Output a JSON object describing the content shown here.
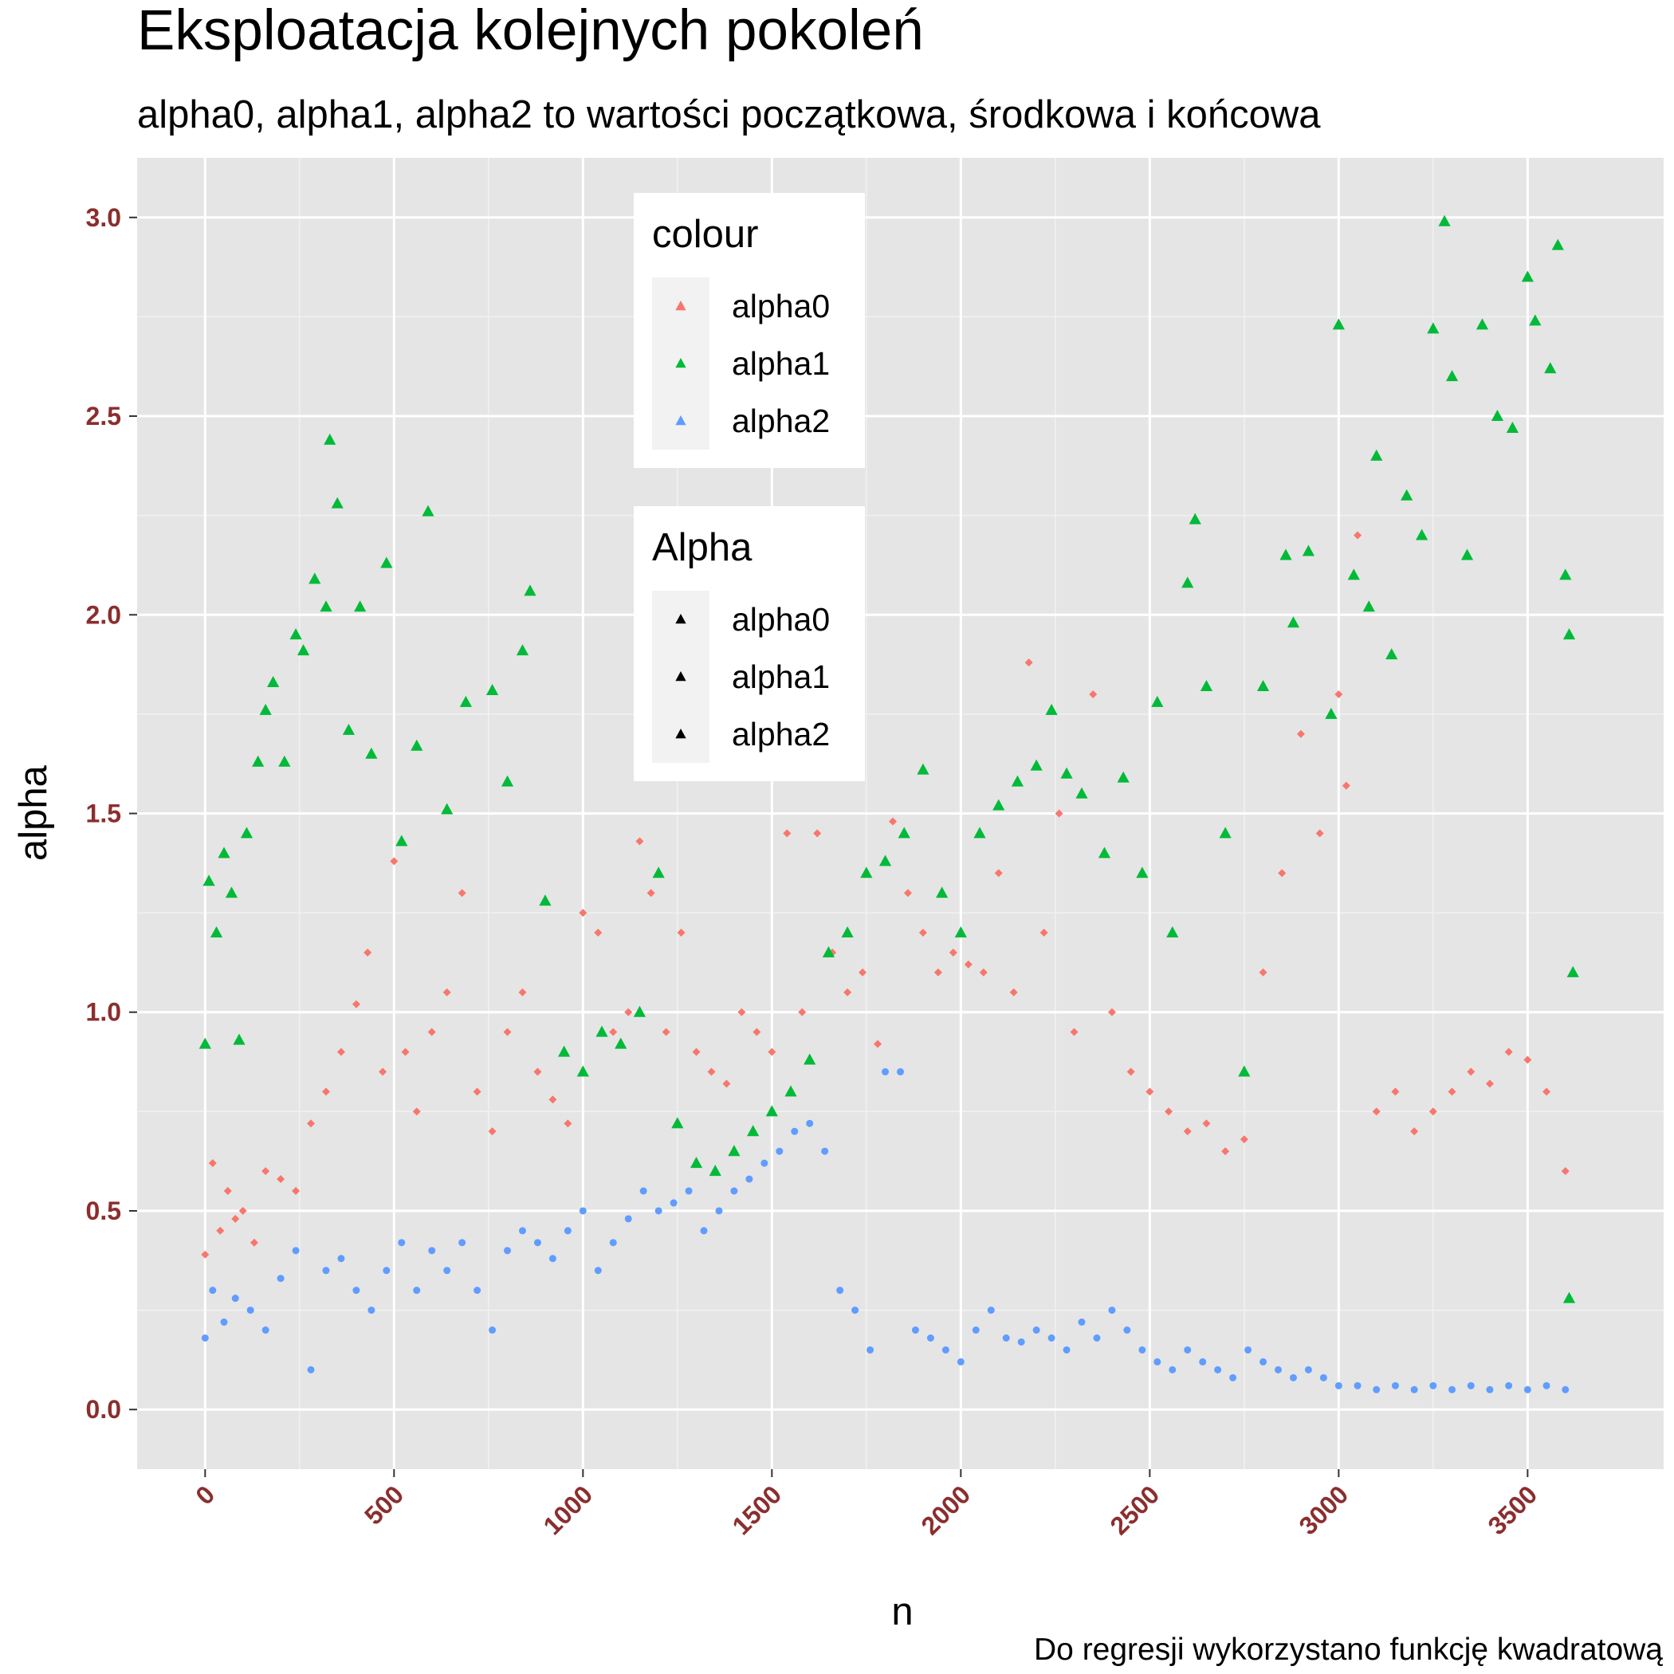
{
  "chart_data": {
    "type": "scatter",
    "title": "Eksploatacja kolejnych pokoleń",
    "subtitle": "alpha0, alpha1, alpha2 to wartości początkowa, środkowa i końcowa",
    "caption": "Do regresji wykorzystano funkcję kwadratową",
    "xlabel": "n",
    "ylabel": "alpha",
    "xlim": [
      -180,
      3860
    ],
    "ylim": [
      -0.15,
      3.15
    ],
    "x_ticks": [
      0,
      500,
      1000,
      1500,
      2000,
      2500,
      3000,
      3500
    ],
    "x_tick_labels": [
      "0",
      "500",
      "1000",
      "1500",
      "2000",
      "2500",
      "3000",
      "3500"
    ],
    "y_ticks": [
      0.0,
      0.5,
      1.0,
      1.5,
      2.0,
      2.5,
      3.0
    ],
    "y_tick_labels": [
      "0.0",
      "0.5",
      "1.0",
      "1.5",
      "2.0",
      "2.5",
      "3.0"
    ],
    "grid": true,
    "background": "#e5e5e5",
    "legends": [
      {
        "title": "colour",
        "placement": "top-center",
        "entries": [
          {
            "label": "alpha0",
            "color": "#F8766D",
            "shape": "triangle"
          },
          {
            "label": "alpha1",
            "color": "#00BA38",
            "shape": "triangle"
          },
          {
            "label": "alpha2",
            "color": "#619CFF",
            "shape": "triangle"
          }
        ]
      },
      {
        "title": "Alpha",
        "placement": "top-center",
        "entries": [
          {
            "label": "alpha0",
            "color": "#000000",
            "shape": "triangle"
          },
          {
            "label": "alpha1",
            "color": "#000000",
            "shape": "triangle"
          },
          {
            "label": "alpha2",
            "color": "#000000",
            "shape": "triangle"
          }
        ]
      }
    ],
    "series": [
      {
        "name": "alpha0",
        "color": "#F8766D",
        "shape": "diamond",
        "points": [
          [
            0,
            0.39
          ],
          [
            20,
            0.62
          ],
          [
            40,
            0.45
          ],
          [
            60,
            0.55
          ],
          [
            80,
            0.48
          ],
          [
            100,
            0.5
          ],
          [
            130,
            0.42
          ],
          [
            160,
            0.6
          ],
          [
            200,
            0.58
          ],
          [
            240,
            0.55
          ],
          [
            280,
            0.72
          ],
          [
            320,
            0.8
          ],
          [
            360,
            0.9
          ],
          [
            400,
            1.02
          ],
          [
            430,
            1.15
          ],
          [
            470,
            0.85
          ],
          [
            500,
            1.38
          ],
          [
            530,
            0.9
          ],
          [
            560,
            0.75
          ],
          [
            600,
            0.95
          ],
          [
            640,
            1.05
          ],
          [
            680,
            1.3
          ],
          [
            720,
            0.8
          ],
          [
            760,
            0.7
          ],
          [
            800,
            0.95
          ],
          [
            840,
            1.05
          ],
          [
            880,
            0.85
          ],
          [
            920,
            0.78
          ],
          [
            960,
            0.72
          ],
          [
            1000,
            1.25
          ],
          [
            1040,
            1.2
          ],
          [
            1080,
            0.95
          ],
          [
            1120,
            1.0
          ],
          [
            1150,
            1.43
          ],
          [
            1180,
            1.3
          ],
          [
            1220,
            0.95
          ],
          [
            1260,
            1.2
          ],
          [
            1300,
            0.9
          ],
          [
            1340,
            0.85
          ],
          [
            1380,
            0.82
          ],
          [
            1420,
            1.0
          ],
          [
            1460,
            0.95
          ],
          [
            1500,
            0.9
          ],
          [
            1540,
            1.45
          ],
          [
            1580,
            1.0
          ],
          [
            1620,
            1.45
          ],
          [
            1660,
            1.15
          ],
          [
            1700,
            1.05
          ],
          [
            1740,
            1.1
          ],
          [
            1780,
            0.92
          ],
          [
            1820,
            1.48
          ],
          [
            1860,
            1.3
          ],
          [
            1900,
            1.2
          ],
          [
            1940,
            1.1
          ],
          [
            1980,
            1.15
          ],
          [
            2020,
            1.12
          ],
          [
            2060,
            1.1
          ],
          [
            2100,
            1.35
          ],
          [
            2140,
            1.05
          ],
          [
            2180,
            1.88
          ],
          [
            2220,
            1.2
          ],
          [
            2260,
            1.5
          ],
          [
            2300,
            0.95
          ],
          [
            2350,
            1.8
          ],
          [
            2400,
            1.0
          ],
          [
            2450,
            0.85
          ],
          [
            2500,
            0.8
          ],
          [
            2550,
            0.75
          ],
          [
            2600,
            0.7
          ],
          [
            2650,
            0.72
          ],
          [
            2700,
            0.65
          ],
          [
            2750,
            0.68
          ],
          [
            2800,
            1.1
          ],
          [
            2850,
            1.35
          ],
          [
            2900,
            1.7
          ],
          [
            2950,
            1.45
          ],
          [
            3000,
            1.8
          ],
          [
            3020,
            1.57
          ],
          [
            3050,
            2.2
          ],
          [
            3100,
            0.75
          ],
          [
            3150,
            0.8
          ],
          [
            3200,
            0.7
          ],
          [
            3250,
            0.75
          ],
          [
            3300,
            0.8
          ],
          [
            3350,
            0.85
          ],
          [
            3400,
            0.82
          ],
          [
            3450,
            0.9
          ],
          [
            3500,
            0.88
          ],
          [
            3550,
            0.8
          ],
          [
            3600,
            0.6
          ]
        ]
      },
      {
        "name": "alpha1",
        "color": "#00BA38",
        "shape": "triangle",
        "points": [
          [
            0,
            0.92
          ],
          [
            10,
            1.33
          ],
          [
            30,
            1.2
          ],
          [
            50,
            1.4
          ],
          [
            70,
            1.3
          ],
          [
            90,
            0.93
          ],
          [
            110,
            1.45
          ],
          [
            140,
            1.63
          ],
          [
            160,
            1.76
          ],
          [
            180,
            1.83
          ],
          [
            210,
            1.63
          ],
          [
            240,
            1.95
          ],
          [
            260,
            1.91
          ],
          [
            290,
            2.09
          ],
          [
            320,
            2.02
          ],
          [
            330,
            2.44
          ],
          [
            350,
            2.28
          ],
          [
            380,
            1.71
          ],
          [
            410,
            2.02
          ],
          [
            440,
            1.65
          ],
          [
            480,
            2.13
          ],
          [
            520,
            1.43
          ],
          [
            560,
            1.67
          ],
          [
            590,
            2.26
          ],
          [
            640,
            1.51
          ],
          [
            690,
            1.78
          ],
          [
            760,
            1.81
          ],
          [
            800,
            1.58
          ],
          [
            840,
            1.91
          ],
          [
            860,
            2.06
          ],
          [
            900,
            1.28
          ],
          [
            950,
            0.9
          ],
          [
            1000,
            0.85
          ],
          [
            1050,
            0.95
          ],
          [
            1100,
            0.92
          ],
          [
            1150,
            1.0
          ],
          [
            1200,
            1.35
          ],
          [
            1250,
            0.72
          ],
          [
            1300,
            0.62
          ],
          [
            1350,
            0.6
          ],
          [
            1400,
            0.65
          ],
          [
            1450,
            0.7
          ],
          [
            1500,
            0.75
          ],
          [
            1550,
            0.8
          ],
          [
            1600,
            0.88
          ],
          [
            1650,
            1.15
          ],
          [
            1700,
            1.2
          ],
          [
            1750,
            1.35
          ],
          [
            1800,
            1.38
          ],
          [
            1850,
            1.45
          ],
          [
            1900,
            1.61
          ],
          [
            1950,
            1.3
          ],
          [
            2000,
            1.2
          ],
          [
            2050,
            1.45
          ],
          [
            2100,
            1.52
          ],
          [
            2150,
            1.58
          ],
          [
            2200,
            1.62
          ],
          [
            2240,
            1.76
          ],
          [
            2280,
            1.6
          ],
          [
            2320,
            1.55
          ],
          [
            2380,
            1.4
          ],
          [
            2430,
            1.59
          ],
          [
            2480,
            1.35
          ],
          [
            2520,
            1.78
          ],
          [
            2560,
            1.2
          ],
          [
            2600,
            2.08
          ],
          [
            2620,
            2.24
          ],
          [
            2650,
            1.82
          ],
          [
            2700,
            1.45
          ],
          [
            2750,
            0.85
          ],
          [
            2800,
            1.82
          ],
          [
            2860,
            2.15
          ],
          [
            2880,
            1.98
          ],
          [
            2920,
            2.16
          ],
          [
            2980,
            1.75
          ],
          [
            3000,
            2.73
          ],
          [
            3040,
            2.1
          ],
          [
            3080,
            2.02
          ],
          [
            3100,
            2.4
          ],
          [
            3140,
            1.9
          ],
          [
            3180,
            2.3
          ],
          [
            3220,
            2.2
          ],
          [
            3250,
            2.72
          ],
          [
            3280,
            2.99
          ],
          [
            3300,
            2.6
          ],
          [
            3340,
            2.15
          ],
          [
            3380,
            2.73
          ],
          [
            3420,
            2.5
          ],
          [
            3460,
            2.47
          ],
          [
            3500,
            2.85
          ],
          [
            3520,
            2.74
          ],
          [
            3560,
            2.62
          ],
          [
            3580,
            2.93
          ],
          [
            3600,
            2.1
          ],
          [
            3610,
            1.95
          ],
          [
            3620,
            1.1
          ],
          [
            3610,
            0.28
          ]
        ]
      },
      {
        "name": "alpha2",
        "color": "#619CFF",
        "shape": "circle",
        "points": [
          [
            0,
            0.18
          ],
          [
            20,
            0.3
          ],
          [
            50,
            0.22
          ],
          [
            80,
            0.28
          ],
          [
            120,
            0.25
          ],
          [
            160,
            0.2
          ],
          [
            200,
            0.33
          ],
          [
            240,
            0.4
          ],
          [
            280,
            0.1
          ],
          [
            320,
            0.35
          ],
          [
            360,
            0.38
          ],
          [
            400,
            0.3
          ],
          [
            440,
            0.25
          ],
          [
            480,
            0.35
          ],
          [
            520,
            0.42
          ],
          [
            560,
            0.3
          ],
          [
            600,
            0.4
          ],
          [
            640,
            0.35
          ],
          [
            680,
            0.42
          ],
          [
            720,
            0.3
          ],
          [
            760,
            0.2
          ],
          [
            800,
            0.4
          ],
          [
            840,
            0.45
          ],
          [
            880,
            0.42
          ],
          [
            920,
            0.38
          ],
          [
            960,
            0.45
          ],
          [
            1000,
            0.5
          ],
          [
            1040,
            0.35
          ],
          [
            1080,
            0.42
          ],
          [
            1120,
            0.48
          ],
          [
            1160,
            0.55
          ],
          [
            1200,
            0.5
          ],
          [
            1240,
            0.52
          ],
          [
            1280,
            0.55
          ],
          [
            1320,
            0.45
          ],
          [
            1360,
            0.5
          ],
          [
            1400,
            0.55
          ],
          [
            1440,
            0.58
          ],
          [
            1480,
            0.62
          ],
          [
            1520,
            0.65
          ],
          [
            1560,
            0.7
          ],
          [
            1600,
            0.72
          ],
          [
            1640,
            0.65
          ],
          [
            1680,
            0.3
          ],
          [
            1720,
            0.25
          ],
          [
            1760,
            0.15
          ],
          [
            1800,
            0.85
          ],
          [
            1840,
            0.85
          ],
          [
            1880,
            0.2
          ],
          [
            1920,
            0.18
          ],
          [
            1960,
            0.15
          ],
          [
            2000,
            0.12
          ],
          [
            2040,
            0.2
          ],
          [
            2080,
            0.25
          ],
          [
            2120,
            0.18
          ],
          [
            2160,
            0.17
          ],
          [
            2200,
            0.2
          ],
          [
            2240,
            0.18
          ],
          [
            2280,
            0.15
          ],
          [
            2320,
            0.22
          ],
          [
            2360,
            0.18
          ],
          [
            2400,
            0.25
          ],
          [
            2440,
            0.2
          ],
          [
            2480,
            0.15
          ],
          [
            2520,
            0.12
          ],
          [
            2560,
            0.1
          ],
          [
            2600,
            0.15
          ],
          [
            2640,
            0.12
          ],
          [
            2680,
            0.1
          ],
          [
            2720,
            0.08
          ],
          [
            2760,
            0.15
          ],
          [
            2800,
            0.12
          ],
          [
            2840,
            0.1
          ],
          [
            2880,
            0.08
          ],
          [
            2920,
            0.1
          ],
          [
            2960,
            0.08
          ],
          [
            3000,
            0.06
          ],
          [
            3050,
            0.06
          ],
          [
            3100,
            0.05
          ],
          [
            3150,
            0.06
          ],
          [
            3200,
            0.05
          ],
          [
            3250,
            0.06
          ],
          [
            3300,
            0.05
          ],
          [
            3350,
            0.06
          ],
          [
            3400,
            0.05
          ],
          [
            3450,
            0.06
          ],
          [
            3500,
            0.05
          ],
          [
            3550,
            0.06
          ],
          [
            3600,
            0.05
          ]
        ]
      }
    ]
  }
}
